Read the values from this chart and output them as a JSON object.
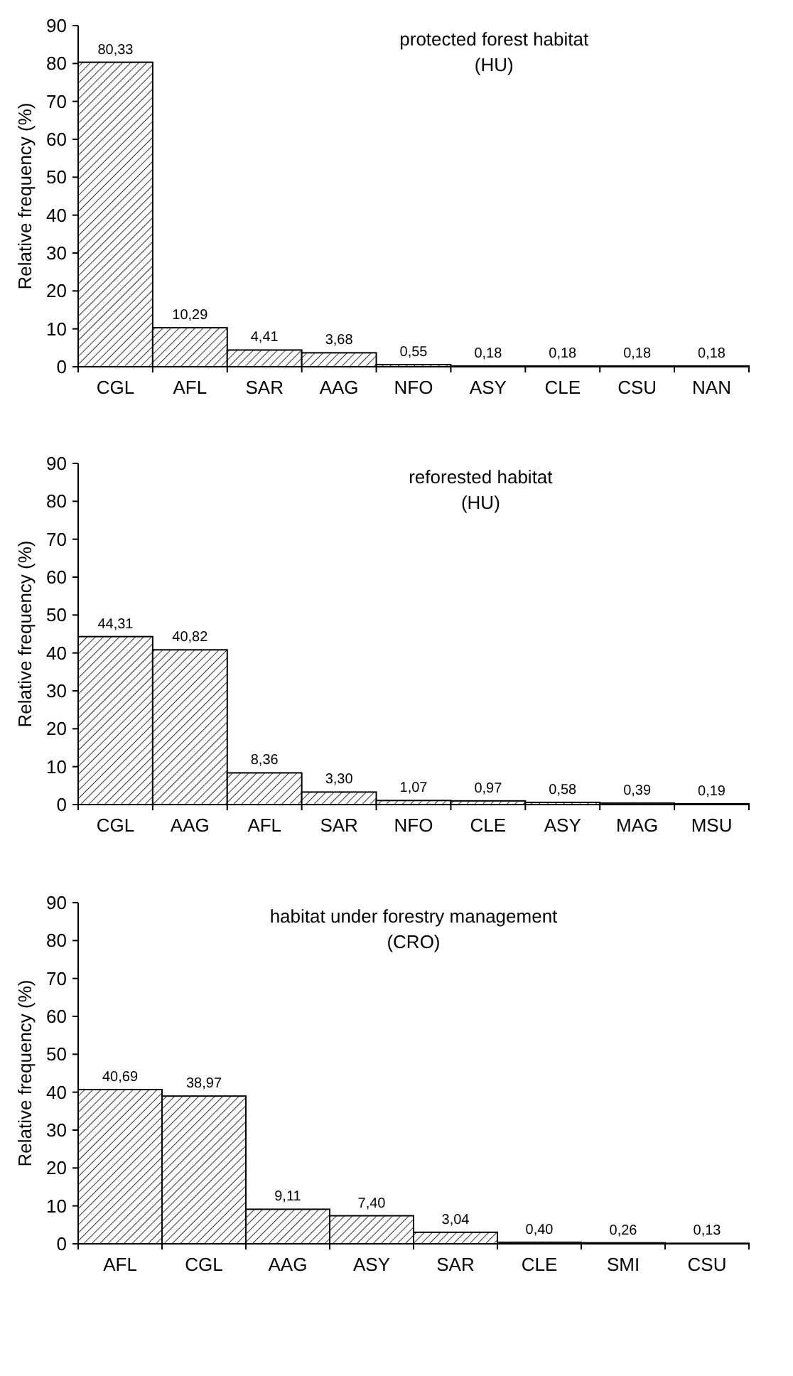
{
  "chart_data": [
    {
      "type": "bar",
      "title": "protected forest habitat",
      "subtitle": "(HU)",
      "ylabel": "Relative frequency (%)",
      "categories": [
        "CGL",
        "AFL",
        "SAR",
        "AAG",
        "NFO",
        "ASY",
        "CLE",
        "CSU",
        "NAN"
      ],
      "values": [
        80.33,
        10.29,
        4.41,
        3.68,
        0.55,
        0.18,
        0.18,
        0.18,
        0.18
      ],
      "value_labels": [
        "80,33",
        "10,29",
        "4,41",
        "3,68",
        "0,55",
        "0,18",
        "0,18",
        "0,18",
        "0,18"
      ],
      "color": "#000000",
      "ylim": [
        0,
        90
      ],
      "yticks": [
        0,
        10,
        20,
        30,
        40,
        50,
        60,
        70,
        80,
        90
      ],
      "grid": false
    },
    {
      "type": "bar",
      "title": "reforested habitat",
      "subtitle": "(HU)",
      "ylabel": "Relative frequency (%)",
      "categories": [
        "CGL",
        "AAG",
        "AFL",
        "SAR",
        "NFO",
        "CLE",
        "ASY",
        "MAG",
        "MSU"
      ],
      "values": [
        44.31,
        40.82,
        8.36,
        3.3,
        1.07,
        0.97,
        0.58,
        0.39,
        0.19
      ],
      "value_labels": [
        "44,31",
        "40,82",
        "8,36",
        "3,30",
        "1,07",
        "0,97",
        "0,58",
        "0,39",
        "0,19"
      ],
      "color": "#000000",
      "ylim": [
        0,
        90
      ],
      "yticks": [
        0,
        10,
        20,
        30,
        40,
        50,
        60,
        70,
        80,
        90
      ],
      "grid": false
    },
    {
      "type": "bar",
      "title": "habitat under forestry management",
      "subtitle": "(CRO)",
      "ylabel": "Relative frequency (%)",
      "categories": [
        "AFL",
        "CGL",
        "AAG",
        "ASY",
        "SAR",
        "CLE",
        "SMI",
        "CSU"
      ],
      "values": [
        40.69,
        38.97,
        9.11,
        7.4,
        3.04,
        0.4,
        0.26,
        0.13
      ],
      "value_labels": [
        "40,69",
        "38,97",
        "9,11",
        "7,40",
        "3,04",
        "0,40",
        "0,26",
        "0,13"
      ],
      "color": "#000000",
      "ylim": [
        0,
        90
      ],
      "yticks": [
        0,
        10,
        20,
        30,
        40,
        50,
        60,
        70,
        80,
        90
      ],
      "grid": false
    }
  ]
}
